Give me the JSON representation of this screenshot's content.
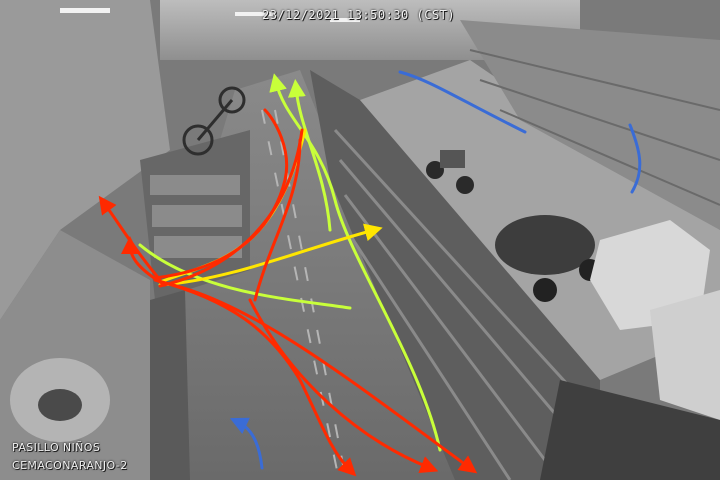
{
  "overlay": {
    "timestamp": "23/12/2021 13:50:30 (CST)",
    "camera_area": "PASILLO NIÑOS",
    "camera_id": "CEMACONARANJO-2"
  },
  "trajectory_colors": {
    "red": "#ff2a00",
    "yellow": "#ffe600",
    "green": "#c8ff3a",
    "blue": "#3a6cd6"
  }
}
